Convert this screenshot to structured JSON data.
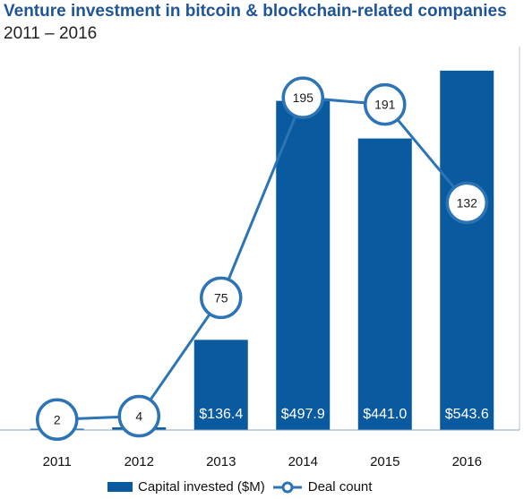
{
  "title": "Venture investment in bitcoin & blockchain-related companies",
  "subtitle": "2011 – 2016",
  "colors": {
    "bar": "#0a5aa0",
    "line": "#2c74b5",
    "marker_fill": "#ffffff",
    "title": "#1f5597"
  },
  "chart_data": {
    "type": "bar",
    "categories": [
      "2011",
      "2012",
      "2013",
      "2014",
      "2015",
      "2016"
    ],
    "series": [
      {
        "name": "Capital invested ($M)",
        "type": "bar",
        "values": [
          2,
          4,
          136.4,
          497.9,
          441.0,
          543.6
        ],
        "labels": [
          "",
          "",
          "$136.4",
          "$497.9",
          "$441.0",
          "$543.6"
        ]
      },
      {
        "name": "Deal count",
        "type": "line",
        "values": [
          2,
          4,
          75,
          195,
          191,
          132
        ]
      }
    ],
    "ylim_bar": [
      0,
      580
    ],
    "ylim_line": [
      0,
      230
    ]
  }
}
